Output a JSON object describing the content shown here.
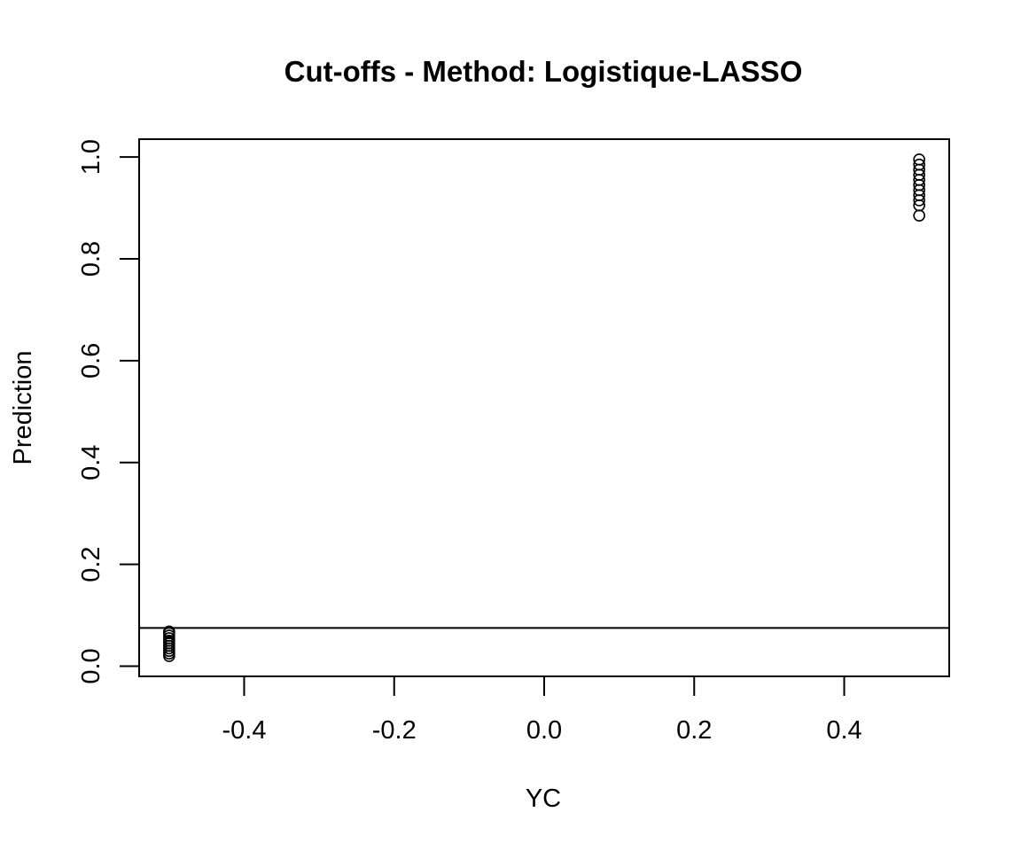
{
  "chart_data": {
    "type": "scatter",
    "title": "Cut-offs - Method: Logistique-LASSO",
    "xlabel": "YC",
    "ylabel": "Prediction",
    "xlim": [
      -0.54,
      0.54
    ],
    "ylim": [
      -0.02,
      1.035
    ],
    "xticks": [
      -0.4,
      -0.2,
      0.0,
      0.2,
      0.4
    ],
    "xtick_labels": [
      "-0.4",
      "-0.2",
      "0.0",
      "0.2",
      "0.4"
    ],
    "yticks": [
      0.0,
      0.2,
      0.4,
      0.6,
      0.8,
      1.0
    ],
    "ytick_labels": [
      "0.0",
      "0.2",
      "0.4",
      "0.6",
      "0.8",
      "1.0"
    ],
    "grid": false,
    "marker": "open-circle",
    "hline": 0.075,
    "points": [
      {
        "x": -0.5,
        "y": 0.02
      },
      {
        "x": -0.5,
        "y": 0.025
      },
      {
        "x": -0.5,
        "y": 0.03
      },
      {
        "x": -0.5,
        "y": 0.035
      },
      {
        "x": -0.5,
        "y": 0.04
      },
      {
        "x": -0.5,
        "y": 0.045
      },
      {
        "x": -0.5,
        "y": 0.05
      },
      {
        "x": -0.5,
        "y": 0.055
      },
      {
        "x": -0.5,
        "y": 0.06
      },
      {
        "x": -0.5,
        "y": 0.065
      },
      {
        "x": -0.5,
        "y": 0.068
      },
      {
        "x": 0.5,
        "y": 0.885
      },
      {
        "x": 0.5,
        "y": 0.905
      },
      {
        "x": 0.5,
        "y": 0.915
      },
      {
        "x": 0.5,
        "y": 0.925
      },
      {
        "x": 0.5,
        "y": 0.935
      },
      {
        "x": 0.5,
        "y": 0.945
      },
      {
        "x": 0.5,
        "y": 0.955
      },
      {
        "x": 0.5,
        "y": 0.965
      },
      {
        "x": 0.5,
        "y": 0.975
      },
      {
        "x": 0.5,
        "y": 0.985
      },
      {
        "x": 0.5,
        "y": 0.995
      }
    ]
  }
}
